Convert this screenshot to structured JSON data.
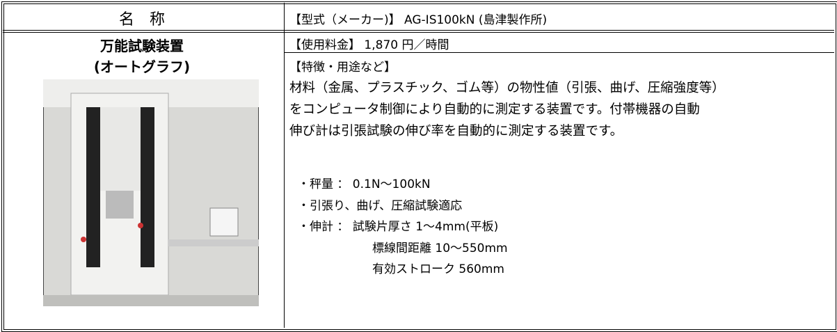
{
  "header": {
    "name_label": "名　称",
    "model": "【型式（メーカー)】 AG-IS100kN (島津製作所)"
  },
  "equipment": {
    "name_lines": [
      "万能試験装置",
      "(オートグラフ)"
    ]
  },
  "fee": "【使用料金】 1,870 円／時間",
  "features": {
    "heading": "【特徴・用途など】",
    "description_lines": [
      "材料（金属、プラスチック、ゴム等）の物性値（引張、曲げ、圧縮強度等）",
      "をコンピュータ制御により自動的に測定する装置です。付帯機器の自動",
      "伸び計は引張試験の伸び率を自動的に測定する装置です。"
    ],
    "spec_lines": [
      "・秤量 ： 0.1N～100kN",
      "・引張り、曲げ、圧縮試験適応",
      "・伸計 ： 試験片厚さ 1～4mm(平板)",
      "標線間距離 10～550mm",
      "有効ストローク 560mm"
    ]
  }
}
